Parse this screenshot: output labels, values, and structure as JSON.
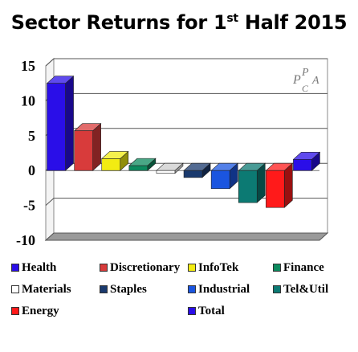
{
  "chart_data": {
    "type": "bar",
    "title_main": "Sector Returns for 1",
    "title_sup": "st",
    "title_end": " Half 2015",
    "categories": [
      "Health",
      "Discretionary",
      "InfoTek",
      "Finance",
      "Materials",
      "Staples",
      "Industrial",
      "Tel&Util",
      "Energy",
      "Total"
    ],
    "values": [
      12.5,
      5.7,
      1.7,
      0.7,
      -0.4,
      -1.0,
      -2.6,
      -4.6,
      -5.3,
      1.6
    ],
    "colors": [
      "#2a0ee8",
      "#d83b3b",
      "#f2ec12",
      "#0c8a5e",
      "#ffffff",
      "#1a3a6e",
      "#1a55e0",
      "#0c7a73",
      "#ff1a1a",
      "#2a0ee8"
    ],
    "ylim": [
      -10,
      15
    ],
    "yticks": [
      "15",
      "10",
      "5",
      "0",
      "-5",
      "-10"
    ],
    "grid": true,
    "legend_position": "bottom",
    "watermark": "PCPA"
  },
  "legend_items": [
    "Health",
    "Discretionary",
    "InfoTek",
    "Finance",
    "Materials",
    "Staples",
    "Industrial",
    "Tel&Util",
    "Energy",
    "Total"
  ]
}
